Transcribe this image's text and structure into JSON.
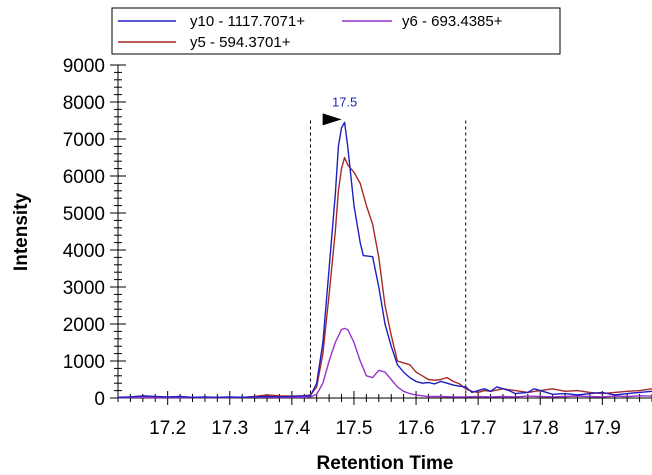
{
  "chart_data": {
    "type": "line",
    "xlabel": "Retention Time",
    "ylabel": "Intensity",
    "xlim": [
      17.12,
      17.98
    ],
    "ylim": [
      0,
      9000
    ],
    "x_ticks": [
      "17.2",
      "17.3",
      "17.4",
      "17.5",
      "17.6",
      "17.7",
      "17.8",
      "17.9"
    ],
    "y_ticks": [
      "0",
      "1000",
      "2000",
      "3000",
      "4000",
      "5000",
      "6000",
      "7000",
      "8000",
      "9000"
    ],
    "legend": {
      "position": "top"
    },
    "integration_bounds": [
      17.43,
      17.68
    ],
    "peak_annotation": {
      "label": "17.5",
      "x": 17.485,
      "y": 7450,
      "color": "#1f1fbf"
    },
    "series": [
      {
        "name": "y10 - 1117.7071+",
        "color": "#1f1fbf",
        "points": [
          [
            17.12,
            20
          ],
          [
            17.14,
            30
          ],
          [
            17.16,
            60
          ],
          [
            17.18,
            40
          ],
          [
            17.2,
            30
          ],
          [
            17.22,
            40
          ],
          [
            17.24,
            20
          ],
          [
            17.26,
            30
          ],
          [
            17.28,
            20
          ],
          [
            17.3,
            30
          ],
          [
            17.32,
            20
          ],
          [
            17.34,
            30
          ],
          [
            17.36,
            40
          ],
          [
            17.38,
            30
          ],
          [
            17.4,
            40
          ],
          [
            17.42,
            60
          ],
          [
            17.43,
            60
          ],
          [
            17.44,
            400
          ],
          [
            17.45,
            1500
          ],
          [
            17.46,
            3500
          ],
          [
            17.47,
            5500
          ],
          [
            17.475,
            6800
          ],
          [
            17.48,
            7300
          ],
          [
            17.485,
            7450
          ],
          [
            17.49,
            6800
          ],
          [
            17.5,
            5200
          ],
          [
            17.51,
            4200
          ],
          [
            17.515,
            3850
          ],
          [
            17.53,
            3820
          ],
          [
            17.54,
            3000
          ],
          [
            17.55,
            2000
          ],
          [
            17.56,
            1400
          ],
          [
            17.57,
            900
          ],
          [
            17.58,
            700
          ],
          [
            17.59,
            550
          ],
          [
            17.6,
            450
          ],
          [
            17.61,
            400
          ],
          [
            17.62,
            420
          ],
          [
            17.63,
            380
          ],
          [
            17.64,
            450
          ],
          [
            17.65,
            400
          ],
          [
            17.66,
            350
          ],
          [
            17.67,
            320
          ],
          [
            17.68,
            300
          ],
          [
            17.69,
            150
          ],
          [
            17.7,
            200
          ],
          [
            17.71,
            250
          ],
          [
            17.72,
            180
          ],
          [
            17.73,
            300
          ],
          [
            17.75,
            200
          ],
          [
            17.76,
            120
          ],
          [
            17.78,
            150
          ],
          [
            17.79,
            250
          ],
          [
            17.8,
            200
          ],
          [
            17.82,
            100
          ],
          [
            17.84,
            120
          ],
          [
            17.86,
            80
          ],
          [
            17.88,
            120
          ],
          [
            17.9,
            150
          ],
          [
            17.92,
            80
          ],
          [
            17.94,
            120
          ],
          [
            17.96,
            150
          ],
          [
            17.98,
            180
          ]
        ]
      },
      {
        "name": "y5 - 594.3701+",
        "color": "#a52a2a",
        "points": [
          [
            17.12,
            10
          ],
          [
            17.14,
            20
          ],
          [
            17.16,
            30
          ],
          [
            17.18,
            20
          ],
          [
            17.2,
            20
          ],
          [
            17.22,
            30
          ],
          [
            17.24,
            20
          ],
          [
            17.26,
            20
          ],
          [
            17.28,
            10
          ],
          [
            17.3,
            20
          ],
          [
            17.32,
            20
          ],
          [
            17.34,
            40
          ],
          [
            17.36,
            80
          ],
          [
            17.38,
            60
          ],
          [
            17.4,
            50
          ],
          [
            17.42,
            60
          ],
          [
            17.43,
            80
          ],
          [
            17.44,
            300
          ],
          [
            17.45,
            1200
          ],
          [
            17.46,
            2800
          ],
          [
            17.47,
            4500
          ],
          [
            17.475,
            5600
          ],
          [
            17.48,
            6200
          ],
          [
            17.485,
            6500
          ],
          [
            17.49,
            6300
          ],
          [
            17.5,
            6100
          ],
          [
            17.51,
            5800
          ],
          [
            17.52,
            5200
          ],
          [
            17.53,
            4700
          ],
          [
            17.54,
            3800
          ],
          [
            17.55,
            2500
          ],
          [
            17.56,
            1700
          ],
          [
            17.57,
            1000
          ],
          [
            17.58,
            950
          ],
          [
            17.59,
            900
          ],
          [
            17.6,
            700
          ],
          [
            17.61,
            600
          ],
          [
            17.62,
            500
          ],
          [
            17.63,
            480
          ],
          [
            17.64,
            500
          ],
          [
            17.65,
            550
          ],
          [
            17.66,
            450
          ],
          [
            17.67,
            380
          ],
          [
            17.68,
            250
          ],
          [
            17.69,
            180
          ],
          [
            17.7,
            150
          ],
          [
            17.71,
            200
          ],
          [
            17.72,
            180
          ],
          [
            17.74,
            250
          ],
          [
            17.76,
            200
          ],
          [
            17.78,
            150
          ],
          [
            17.8,
            200
          ],
          [
            17.82,
            250
          ],
          [
            17.84,
            180
          ],
          [
            17.86,
            200
          ],
          [
            17.88,
            150
          ],
          [
            17.9,
            120
          ],
          [
            17.92,
            150
          ],
          [
            17.94,
            180
          ],
          [
            17.96,
            200
          ],
          [
            17.98,
            250
          ]
        ]
      },
      {
        "name": "y6 - 693.4385+",
        "color": "#9932cc",
        "points": [
          [
            17.12,
            10
          ],
          [
            17.14,
            10
          ],
          [
            17.16,
            20
          ],
          [
            17.18,
            10
          ],
          [
            17.2,
            10
          ],
          [
            17.22,
            10
          ],
          [
            17.24,
            10
          ],
          [
            17.26,
            10
          ],
          [
            17.28,
            10
          ],
          [
            17.3,
            10
          ],
          [
            17.32,
            10
          ],
          [
            17.34,
            20
          ],
          [
            17.36,
            20
          ],
          [
            17.38,
            10
          ],
          [
            17.4,
            20
          ],
          [
            17.42,
            20
          ],
          [
            17.43,
            30
          ],
          [
            17.44,
            100
          ],
          [
            17.45,
            400
          ],
          [
            17.46,
            1000
          ],
          [
            17.47,
            1500
          ],
          [
            17.48,
            1850
          ],
          [
            17.485,
            1880
          ],
          [
            17.49,
            1850
          ],
          [
            17.5,
            1500
          ],
          [
            17.51,
            1000
          ],
          [
            17.52,
            600
          ],
          [
            17.53,
            550
          ],
          [
            17.54,
            750
          ],
          [
            17.55,
            700
          ],
          [
            17.56,
            500
          ],
          [
            17.57,
            300
          ],
          [
            17.58,
            180
          ],
          [
            17.59,
            120
          ],
          [
            17.6,
            80
          ],
          [
            17.61,
            60
          ],
          [
            17.62,
            40
          ],
          [
            17.64,
            40
          ],
          [
            17.66,
            30
          ],
          [
            17.68,
            30
          ],
          [
            17.7,
            40
          ],
          [
            17.72,
            30
          ],
          [
            17.74,
            40
          ],
          [
            17.76,
            30
          ],
          [
            17.78,
            50
          ],
          [
            17.8,
            40
          ],
          [
            17.82,
            30
          ],
          [
            17.84,
            40
          ],
          [
            17.86,
            50
          ],
          [
            17.88,
            40
          ],
          [
            17.9,
            30
          ],
          [
            17.92,
            50
          ],
          [
            17.94,
            40
          ],
          [
            17.96,
            60
          ],
          [
            17.98,
            50
          ]
        ]
      }
    ]
  }
}
